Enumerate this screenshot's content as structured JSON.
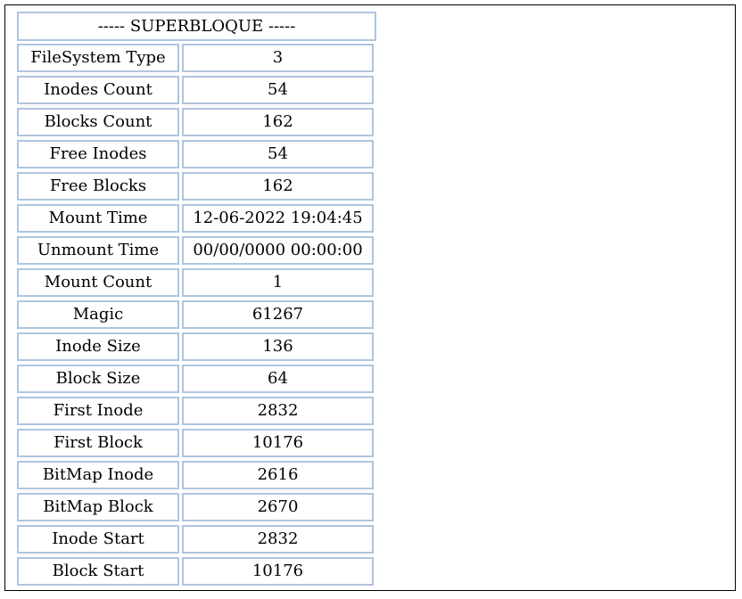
{
  "title": "----- SUPERBLOQUE -----",
  "rows": [
    {
      "label": "FileSystem Type",
      "value": "3"
    },
    {
      "label": "Inodes Count",
      "value": "54"
    },
    {
      "label": "Blocks Count",
      "value": "162"
    },
    {
      "label": "Free Inodes",
      "value": "54"
    },
    {
      "label": "Free Blocks",
      "value": "162"
    },
    {
      "label": "Mount Time",
      "value": "12-06-2022 19:04:45"
    },
    {
      "label": "Unmount Time",
      "value": "00/00/0000 00:00:00"
    },
    {
      "label": "Mount Count",
      "value": "1"
    },
    {
      "label": "Magic",
      "value": "61267"
    },
    {
      "label": "Inode Size",
      "value": "136"
    },
    {
      "label": "Block Size",
      "value": "64"
    },
    {
      "label": "First Inode",
      "value": "2832"
    },
    {
      "label": "First Block",
      "value": "10176"
    },
    {
      "label": "BitMap Inode",
      "value": "2616"
    },
    {
      "label": "BitMap Block",
      "value": "2670"
    },
    {
      "label": "Inode Start",
      "value": "2832"
    },
    {
      "label": "Block Start",
      "value": "10176"
    }
  ],
  "colors": {
    "cell_border": "#b0c4de",
    "frame_border": "#000000"
  }
}
